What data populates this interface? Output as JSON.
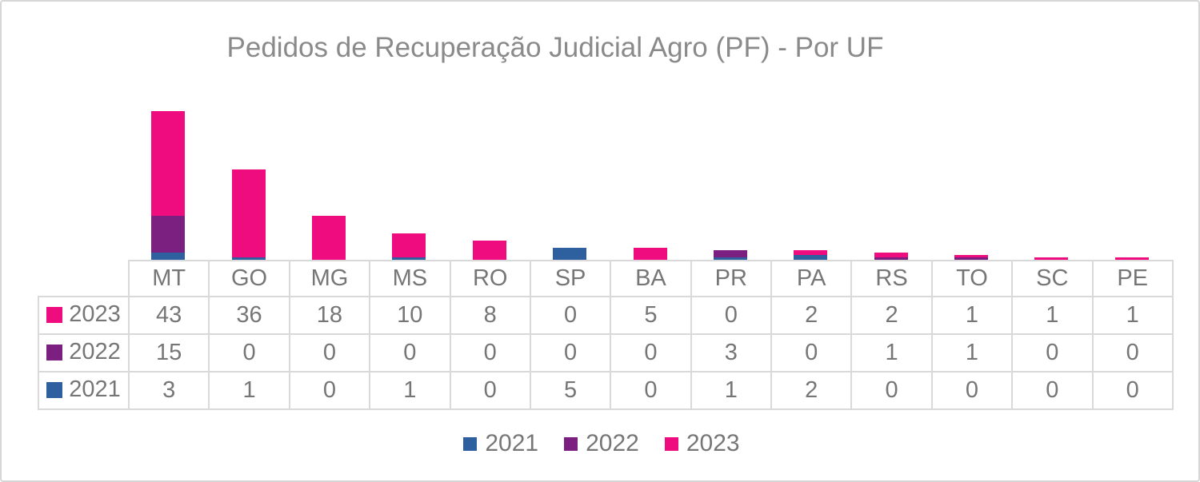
{
  "chart_data": {
    "type": "bar",
    "stacked": true,
    "title": "Pedidos de Recuperação Judicial Agro (PF) - Por UF",
    "categories": [
      "MT",
      "GO",
      "MG",
      "MS",
      "RO",
      "SP",
      "BA",
      "PR",
      "PA",
      "RS",
      "TO",
      "SC",
      "PE"
    ],
    "series": [
      {
        "name": "2021",
        "color": "#2E5F9E",
        "values": [
          3,
          1,
          0,
          1,
          0,
          5,
          0,
          1,
          2,
          0,
          0,
          0,
          0
        ]
      },
      {
        "name": "2022",
        "color": "#7B1F80",
        "values": [
          15,
          0,
          0,
          0,
          0,
          0,
          0,
          3,
          0,
          1,
          1,
          0,
          0
        ]
      },
      {
        "name": "2023",
        "color": "#EE0C7F",
        "values": [
          43,
          36,
          18,
          10,
          8,
          0,
          5,
          0,
          2,
          2,
          1,
          1,
          1
        ]
      }
    ],
    "stack_order_bottom_to_top": [
      "2021",
      "2022",
      "2023"
    ],
    "value_axis_visible": false,
    "gridlines": false,
    "legend": {
      "position": "bottom",
      "entries": [
        "2021",
        "2022",
        "2023"
      ]
    },
    "data_table": {
      "visible": true,
      "show_legend_keys": true,
      "row_order": [
        "2023",
        "2022",
        "2021"
      ]
    },
    "colors": {
      "title_text": "#8a8a8a",
      "table_text": "#767676",
      "table_border": "#d9d9d9",
      "frame_border": "#d6d6d6",
      "background": "#ffffff"
    }
  }
}
